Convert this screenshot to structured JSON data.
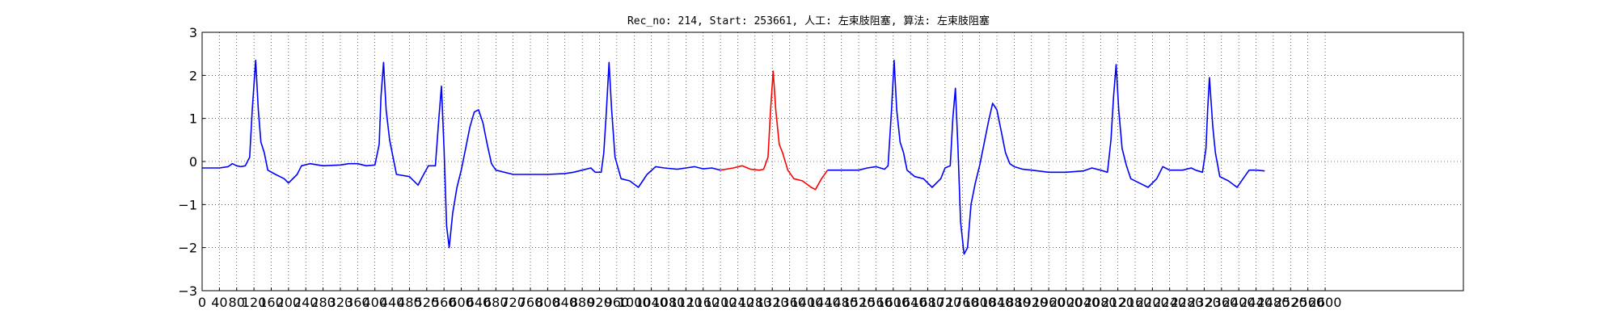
{
  "chart_data": {
    "type": "line",
    "title": "Rec_no: 214, Start: 253661, 人工: 左束肢阻塞, 算法: 左束肢阻塞",
    "xlabel": "",
    "ylabel": "",
    "xlim": [
      0,
      1460
    ],
    "ylim": [
      -3,
      3
    ],
    "grid": true,
    "x_tick_step": 20,
    "x_tick_labels": [
      "0",
      "40",
      "80",
      "120",
      "160",
      "200",
      "240",
      "280",
      "320",
      "360",
      "400",
      "440",
      "480",
      "520",
      "560",
      "600",
      "640",
      "680",
      "720",
      "760",
      "800",
      "840",
      "880",
      "920",
      "960",
      "1000",
      "1040",
      "1080",
      "1120",
      "1160",
      "1200",
      "1240",
      "1280",
      "1320",
      "1360",
      "1400",
      "1440",
      "1480",
      "1520",
      "1560",
      "1600",
      "1640",
      "1680",
      "1720",
      "1760",
      "1800",
      "1840",
      "1880",
      "1920",
      "1960",
      "2000",
      "2040",
      "2080",
      "2120",
      "2160",
      "2200",
      "2240",
      "2280",
      "2320",
      "2360",
      "2400",
      "2440",
      "2480",
      "2520",
      "2560",
      "2600"
    ],
    "y_ticks": [
      3,
      2,
      1,
      0,
      -1,
      -2,
      -3
    ],
    "y_tick_labels": [
      "3",
      "2",
      "1",
      "0",
      "−1",
      "−2",
      "−3"
    ],
    "series": [
      {
        "color": "#0000ff",
        "points": [
          [
            0,
            -0.15
          ],
          [
            20,
            -0.15
          ],
          [
            30,
            -0.12
          ],
          [
            35,
            -0.05
          ],
          [
            40,
            -0.1
          ],
          [
            45,
            -0.12
          ],
          [
            50,
            -0.1
          ],
          [
            55,
            0.1
          ],
          [
            58,
            1.2
          ],
          [
            62,
            2.35
          ],
          [
            65,
            1.2
          ],
          [
            68,
            0.45
          ],
          [
            72,
            0.2
          ],
          [
            76,
            -0.2
          ],
          [
            85,
            -0.3
          ],
          [
            95,
            -0.4
          ],
          [
            100,
            -0.5
          ],
          [
            110,
            -0.3
          ],
          [
            115,
            -0.1
          ],
          [
            125,
            -0.05
          ],
          [
            140,
            -0.1
          ],
          [
            160,
            -0.08
          ],
          [
            170,
            -0.05
          ],
          [
            180,
            -0.05
          ],
          [
            190,
            -0.1
          ],
          [
            200,
            -0.08
          ],
          [
            205,
            0.4
          ],
          [
            207,
            1.5
          ],
          [
            210,
            2.3
          ],
          [
            213,
            1.2
          ],
          [
            217,
            0.5
          ],
          [
            220,
            0.2
          ],
          [
            225,
            -0.3
          ],
          [
            240,
            -0.35
          ],
          [
            250,
            -0.55
          ],
          [
            255,
            -0.35
          ],
          [
            262,
            -0.1
          ],
          [
            270,
            -0.1
          ],
          [
            274,
            1.0
          ],
          [
            277,
            1.75
          ],
          [
            280,
            0.3
          ],
          [
            283,
            -1.5
          ],
          [
            286,
            -2.0
          ],
          [
            290,
            -1.2
          ],
          [
            295,
            -0.6
          ],
          [
            300,
            -0.2
          ],
          [
            305,
            0.3
          ],
          [
            310,
            0.8
          ],
          [
            315,
            1.15
          ],
          [
            320,
            1.2
          ],
          [
            325,
            0.9
          ],
          [
            330,
            0.4
          ],
          [
            335,
            -0.05
          ],
          [
            340,
            -0.2
          ],
          [
            360,
            -0.3
          ],
          [
            380,
            -0.3
          ],
          [
            400,
            -0.3
          ],
          [
            420,
            -0.28
          ],
          [
            430,
            -0.25
          ],
          [
            440,
            -0.2
          ],
          [
            450,
            -0.15
          ],
          [
            455,
            -0.25
          ],
          [
            462,
            -0.25
          ],
          [
            465,
            0.2
          ],
          [
            468,
            1.2
          ],
          [
            471,
            2.3
          ],
          [
            474,
            1.2
          ],
          [
            478,
            0.1
          ],
          [
            485,
            -0.4
          ],
          [
            495,
            -0.45
          ],
          [
            505,
            -0.6
          ],
          [
            515,
            -0.3
          ],
          [
            525,
            -0.12
          ],
          [
            535,
            -0.15
          ],
          [
            550,
            -0.18
          ],
          [
            560,
            -0.15
          ],
          [
            570,
            -0.12
          ],
          [
            580,
            -0.17
          ],
          [
            590,
            -0.15
          ],
          [
            600,
            -0.2
          ]
        ]
      },
      {
        "color": "#ff0000",
        "points": [
          [
            600,
            -0.2
          ],
          [
            615,
            -0.15
          ],
          [
            625,
            -0.1
          ],
          [
            635,
            -0.18
          ],
          [
            645,
            -0.2
          ],
          [
            650,
            -0.18
          ],
          [
            655,
            0.1
          ],
          [
            658,
            1.2
          ],
          [
            661,
            2.1
          ],
          [
            664,
            1.2
          ],
          [
            668,
            0.4
          ],
          [
            672,
            0.2
          ],
          [
            678,
            -0.2
          ],
          [
            685,
            -0.4
          ],
          [
            695,
            -0.45
          ],
          [
            705,
            -0.6
          ],
          [
            710,
            -0.65
          ],
          [
            717,
            -0.4
          ],
          [
            724,
            -0.2
          ]
        ]
      },
      {
        "color": "#0000ff",
        "points": [
          [
            724,
            -0.2
          ],
          [
            740,
            -0.2
          ],
          [
            760,
            -0.2
          ],
          [
            770,
            -0.15
          ],
          [
            780,
            -0.12
          ],
          [
            785,
            -0.15
          ],
          [
            790,
            -0.18
          ],
          [
            794,
            -0.1
          ],
          [
            798,
            1.2
          ],
          [
            801,
            2.35
          ],
          [
            804,
            1.2
          ],
          [
            808,
            0.45
          ],
          [
            812,
            0.2
          ],
          [
            816,
            -0.2
          ],
          [
            825,
            -0.35
          ],
          [
            835,
            -0.4
          ],
          [
            845,
            -0.6
          ],
          [
            855,
            -0.4
          ],
          [
            860,
            -0.15
          ],
          [
            866,
            -0.1
          ],
          [
            869,
            1.0
          ],
          [
            872,
            1.7
          ],
          [
            875,
            0.3
          ],
          [
            878,
            -1.4
          ],
          [
            882,
            -2.15
          ],
          [
            886,
            -2.0
          ],
          [
            890,
            -1.0
          ],
          [
            895,
            -0.5
          ],
          [
            900,
            -0.1
          ],
          [
            905,
            0.4
          ],
          [
            910,
            0.9
          ],
          [
            915,
            1.35
          ],
          [
            920,
            1.2
          ],
          [
            925,
            0.7
          ],
          [
            930,
            0.2
          ],
          [
            935,
            -0.05
          ],
          [
            940,
            -0.12
          ],
          [
            950,
            -0.18
          ],
          [
            960,
            -0.2
          ],
          [
            980,
            -0.25
          ],
          [
            1000,
            -0.25
          ],
          [
            1020,
            -0.22
          ],
          [
            1030,
            -0.15
          ],
          [
            1040,
            -0.2
          ],
          [
            1048,
            -0.25
          ],
          [
            1052,
            0.5
          ],
          [
            1055,
            1.5
          ],
          [
            1058,
            2.25
          ],
          [
            1061,
            1.2
          ],
          [
            1065,
            0.3
          ],
          [
            1070,
            -0.1
          ],
          [
            1075,
            -0.4
          ],
          [
            1085,
            -0.5
          ],
          [
            1095,
            -0.6
          ],
          [
            1105,
            -0.4
          ],
          [
            1112,
            -0.12
          ],
          [
            1120,
            -0.2
          ],
          [
            1135,
            -0.2
          ],
          [
            1145,
            -0.15
          ],
          [
            1150,
            -0.2
          ],
          [
            1158,
            -0.25
          ],
          [
            1162,
            0.3
          ],
          [
            1164,
            1.2
          ],
          [
            1166,
            1.95
          ],
          [
            1170,
            0.8
          ],
          [
            1173,
            0.2
          ],
          [
            1178,
            -0.35
          ],
          [
            1188,
            -0.45
          ],
          [
            1198,
            -0.6
          ],
          [
            1205,
            -0.4
          ],
          [
            1212,
            -0.2
          ],
          [
            1220,
            -0.2
          ],
          [
            1230,
            -0.22
          ]
        ]
      }
    ]
  }
}
